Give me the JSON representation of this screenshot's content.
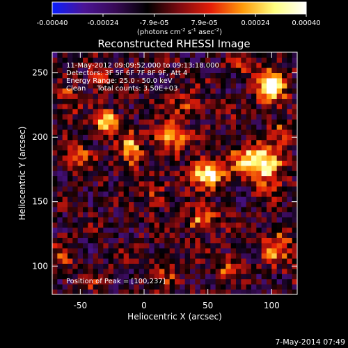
{
  "chart_data": {
    "type": "heatmap",
    "title": "Reconstructed RHESSI Image",
    "xlabel": "Heliocentric X (arcsec)",
    "ylabel": "Heliocentric Y (arcsec)",
    "xlim": [
      -72,
      120
    ],
    "ylim": [
      78,
      266
    ],
    "x_ticks": [
      -50,
      0,
      50,
      100
    ],
    "y_ticks": [
      100,
      150,
      200,
      250
    ],
    "colorbar": {
      "ticks": [
        "-0.00040",
        "-0.00024",
        "-7.9e-05",
        "7.9e-05",
        "0.00024",
        "0.00040"
      ],
      "tick_values": [
        -0.0004,
        -0.00024,
        -7.9e-05,
        7.9e-05,
        0.00024,
        0.0004
      ],
      "range": [
        -0.0004,
        0.0004
      ],
      "units_line1": "(photons cm",
      "units_sup1": "-2",
      "units_mid": " s",
      "units_sup2": "-1",
      "units_mid2": " asec",
      "units_sup3": "-2",
      "units_end": ")",
      "colormap": [
        "#0a1eff",
        "#4b1496",
        "#370a55",
        "#000000",
        "#7d0a10",
        "#e41e08",
        "#ff9b0a",
        "#ffff80",
        "#ffffff"
      ]
    },
    "annotations": [
      "11-May-2012 09:09:52.000 to 09:13:18.000",
      "Detectors: 3F 5F 6F 7F 8F 9F, Att 4",
      "Energy Range: 25.0 - 50.0 keV",
      "Clean     Total counts: 3.50E+03"
    ],
    "peak_label": "Position of Peak = [100,237]",
    "peak_position": [
      100,
      237
    ],
    "footer_date": "7-May-2014 07:49",
    "grid": false,
    "pixel_size_arcsec": 4,
    "sources": [
      {
        "x": 50,
        "y": 172,
        "amp": 1.0,
        "sx": 9,
        "sy": 7
      },
      {
        "x": 95,
        "y": 178,
        "amp": 0.95,
        "sx": 9,
        "sy": 10
      },
      {
        "x": 100,
        "y": 240,
        "amp": 1.0,
        "sx": 7,
        "sy": 9
      },
      {
        "x": 78,
        "y": 185,
        "amp": 0.55,
        "sx": 10,
        "sy": 7
      },
      {
        "x": 20,
        "y": 200,
        "amp": 0.65,
        "sx": 8,
        "sy": 8
      },
      {
        "x": -28,
        "y": 212,
        "amp": 0.85,
        "sx": 6,
        "sy": 6
      },
      {
        "x": -10,
        "y": 190,
        "amp": 0.55,
        "sx": 6,
        "sy": 10
      },
      {
        "x": -50,
        "y": 185,
        "amp": 0.45,
        "sx": 8,
        "sy": 7
      },
      {
        "x": -35,
        "y": 245,
        "amp": 0.45,
        "sx": 6,
        "sy": 6
      },
      {
        "x": 45,
        "y": 135,
        "amp": 0.55,
        "sx": 8,
        "sy": 6
      },
      {
        "x": 35,
        "y": 225,
        "amp": 0.35,
        "sx": 10,
        "sy": 6
      },
      {
        "x": 105,
        "y": 115,
        "amp": 0.45,
        "sx": 8,
        "sy": 10
      },
      {
        "x": 65,
        "y": 100,
        "amp": 0.35,
        "sx": 8,
        "sy": 8
      },
      {
        "x": -60,
        "y": 230,
        "amp": 0.3,
        "sx": 6,
        "sy": 8
      },
      {
        "x": -62,
        "y": 110,
        "amp": 0.3,
        "sx": 6,
        "sy": 6
      },
      {
        "x": 110,
        "y": 205,
        "amp": 0.4,
        "sx": 6,
        "sy": 6
      },
      {
        "x": 10,
        "y": 155,
        "amp": 0.3,
        "sx": 8,
        "sy": 6
      },
      {
        "x": -40,
        "y": 90,
        "amp": 0.25,
        "sx": 8,
        "sy": 5
      },
      {
        "x": 20,
        "y": 95,
        "amp": 0.25,
        "sx": 8,
        "sy": 6
      },
      {
        "x": 80,
        "y": 255,
        "amp": 0.35,
        "sx": 6,
        "sy": 5
      }
    ],
    "background_level": -0.25,
    "noise_amplitude": 0.35
  }
}
